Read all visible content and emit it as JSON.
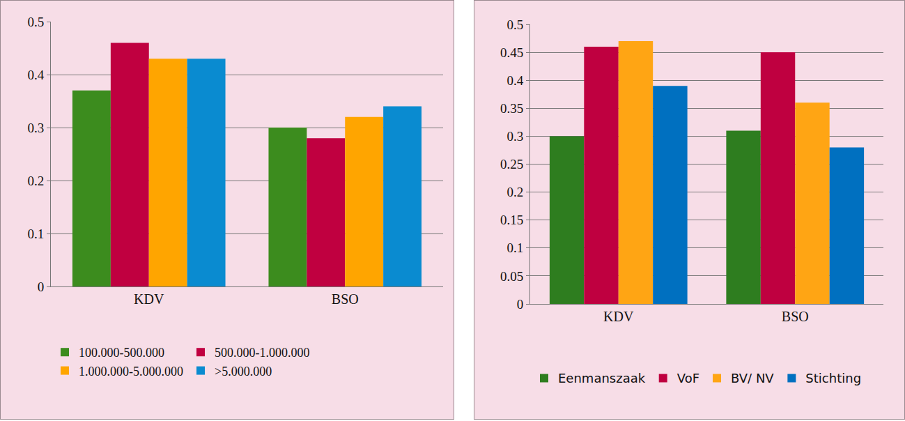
{
  "chart_data": [
    {
      "type": "bar",
      "categories": [
        "KDV",
        "BSO"
      ],
      "series": [
        {
          "name": "100.000-500.000",
          "color": "#3c8c1e",
          "values": [
            0.37,
            0.3
          ]
        },
        {
          "name": "500.000-1.000.000",
          "color": "#c00040",
          "values": [
            0.46,
            0.28
          ]
        },
        {
          "name": "1.000.000-5.000.000",
          "color": "#ffa500",
          "values": [
            0.43,
            0.32
          ]
        },
        {
          "name": ">5.000.000",
          "color": "#0a8bd0",
          "values": [
            0.43,
            0.34
          ]
        }
      ],
      "ylim": [
        0,
        0.5
      ],
      "yticks": [
        0,
        0.1,
        0.2,
        0.3,
        0.4,
        0.5
      ],
      "grid": true,
      "legend": "bottom"
    },
    {
      "type": "bar",
      "categories": [
        "KDV",
        "BSO"
      ],
      "series": [
        {
          "name": "Eenmanszaak",
          "color": "#2e7d1f",
          "values": [
            0.3,
            0.31
          ]
        },
        {
          "name": "VoF",
          "color": "#bf0040",
          "values": [
            0.46,
            0.45
          ]
        },
        {
          "name": "BV/ NV",
          "color": "#ffa514",
          "values": [
            0.47,
            0.36
          ]
        },
        {
          "name": "Stichting",
          "color": "#0070c0",
          "values": [
            0.39,
            0.28
          ]
        }
      ],
      "ylim": [
        0,
        0.5
      ],
      "yticks": [
        0,
        0.05,
        0.1,
        0.15,
        0.2,
        0.25,
        0.3,
        0.35,
        0.4,
        0.45,
        0.5
      ],
      "grid": true,
      "legend": "bottom"
    }
  ]
}
